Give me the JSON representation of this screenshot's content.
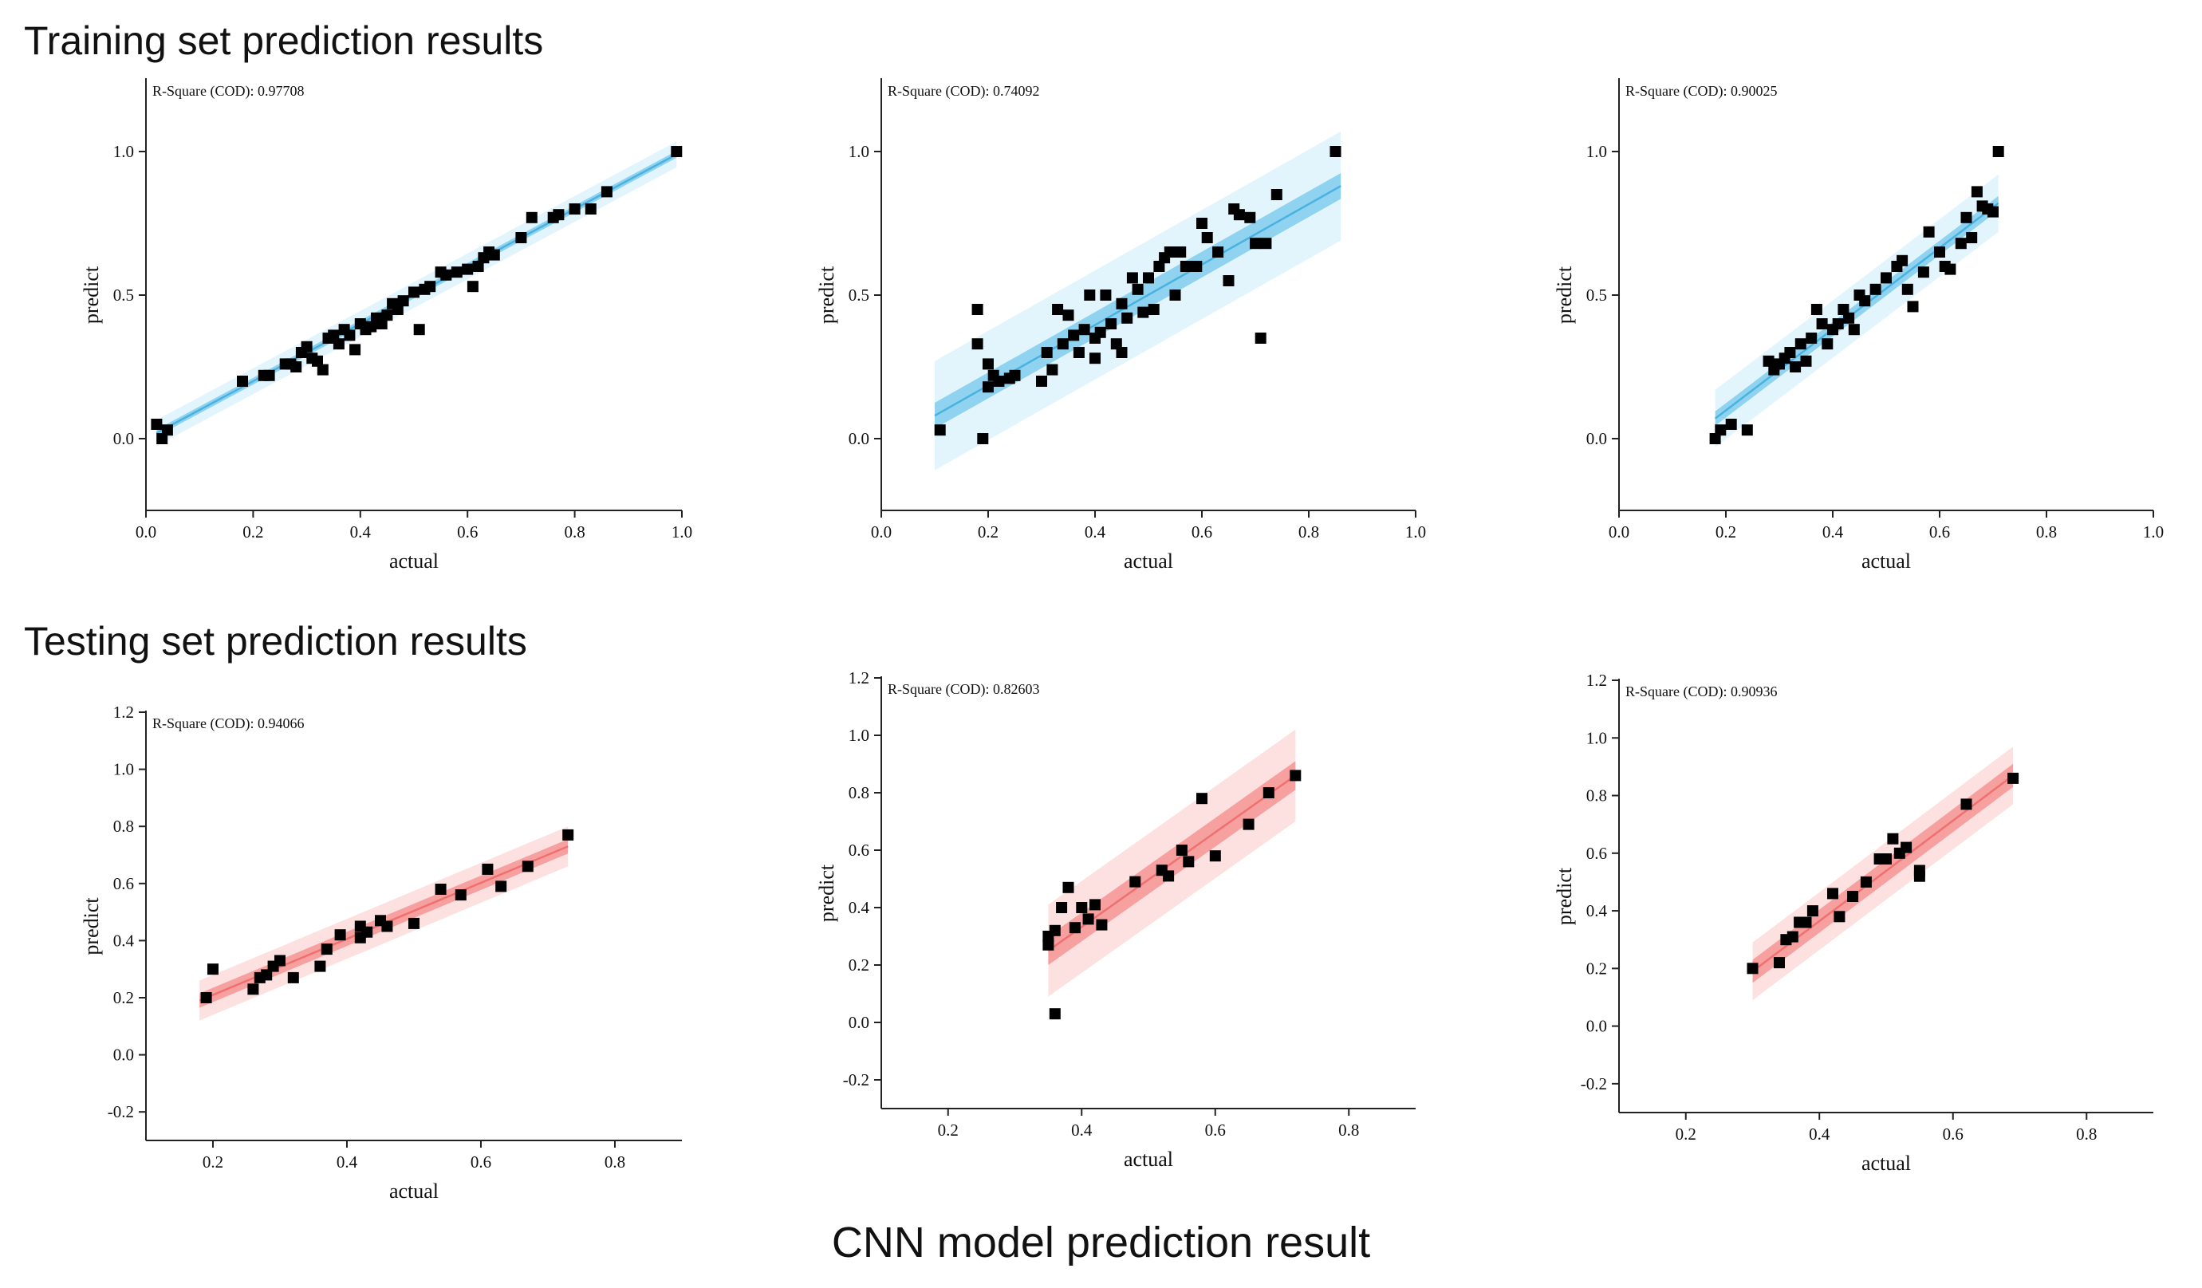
{
  "section_titles": {
    "training": "Training set prediction results",
    "testing": "Testing set prediction results"
  },
  "caption": "CNN model  prediction result",
  "colors": {
    "train_line": "#4ab2df",
    "train_conf": "#8fd3f0",
    "train_pred": "#e2f5fd",
    "test_line": "#f07070",
    "test_conf": "#f6a0a0",
    "test_pred": "#fde1e1",
    "marker": "#000000",
    "axis": "#222222"
  },
  "chart_data": [
    {
      "type": "scatter",
      "set": "training",
      "model": 1,
      "r2_text": "R-Square (COD): 0.97708",
      "xlabel": "actual",
      "ylabel": "predict",
      "xlim": [
        0,
        1
      ],
      "ylim": [
        -0.25,
        1.25
      ],
      "xticks": [
        0,
        0.2,
        0.4,
        0.6,
        0.8,
        1.0
      ],
      "xtick_labels": [
        "0.0",
        "0.2",
        "0.4",
        "0.6",
        "0.8",
        "1.0"
      ],
      "yticks": [
        0,
        0.5,
        1.0
      ],
      "ytick_labels": [
        "0.0",
        "0.5",
        "1.0"
      ],
      "fit": {
        "x0": 0.02,
        "y0": 0.02,
        "x1": 0.99,
        "y1": 0.99,
        "conf": 0.012,
        "pred": 0.045
      },
      "points": [
        [
          0.02,
          0.05
        ],
        [
          0.03,
          0.0
        ],
        [
          0.04,
          0.03
        ],
        [
          0.18,
          0.2
        ],
        [
          0.22,
          0.22
        ],
        [
          0.23,
          0.22
        ],
        [
          0.26,
          0.26
        ],
        [
          0.27,
          0.26
        ],
        [
          0.28,
          0.25
        ],
        [
          0.29,
          0.3
        ],
        [
          0.3,
          0.32
        ],
        [
          0.31,
          0.28
        ],
        [
          0.32,
          0.27
        ],
        [
          0.33,
          0.24
        ],
        [
          0.34,
          0.35
        ],
        [
          0.35,
          0.36
        ],
        [
          0.36,
          0.33
        ],
        [
          0.37,
          0.38
        ],
        [
          0.38,
          0.36
        ],
        [
          0.39,
          0.31
        ],
        [
          0.4,
          0.4
        ],
        [
          0.41,
          0.38
        ],
        [
          0.42,
          0.39
        ],
        [
          0.43,
          0.42
        ],
        [
          0.44,
          0.4
        ],
        [
          0.45,
          0.43
        ],
        [
          0.46,
          0.47
        ],
        [
          0.47,
          0.45
        ],
        [
          0.48,
          0.48
        ],
        [
          0.5,
          0.51
        ],
        [
          0.51,
          0.38
        ],
        [
          0.52,
          0.52
        ],
        [
          0.53,
          0.53
        ],
        [
          0.55,
          0.58
        ],
        [
          0.56,
          0.57
        ],
        [
          0.58,
          0.58
        ],
        [
          0.6,
          0.59
        ],
        [
          0.61,
          0.53
        ],
        [
          0.62,
          0.6
        ],
        [
          0.63,
          0.63
        ],
        [
          0.64,
          0.65
        ],
        [
          0.65,
          0.64
        ],
        [
          0.7,
          0.7
        ],
        [
          0.72,
          0.77
        ],
        [
          0.76,
          0.77
        ],
        [
          0.77,
          0.78
        ],
        [
          0.8,
          0.8
        ],
        [
          0.83,
          0.8
        ],
        [
          0.86,
          0.86
        ],
        [
          0.99,
          1.0
        ]
      ]
    },
    {
      "type": "scatter",
      "set": "training",
      "model": 2,
      "r2_text": "R-Square (COD): 0.74092",
      "xlabel": "actual",
      "ylabel": "predict",
      "xlim": [
        0,
        1
      ],
      "ylim": [
        -0.25,
        1.25
      ],
      "xticks": [
        0,
        0.2,
        0.4,
        0.6,
        0.8,
        1.0
      ],
      "xtick_labels": [
        "0.0",
        "0.2",
        "0.4",
        "0.6",
        "0.8",
        "1.0"
      ],
      "yticks": [
        0,
        0.5,
        1.0
      ],
      "ytick_labels": [
        "0.0",
        "0.5",
        "1.0"
      ],
      "fit": {
        "x0": 0.1,
        "y0": 0.08,
        "x1": 0.86,
        "y1": 0.88,
        "conf": 0.045,
        "pred": 0.19
      },
      "points": [
        [
          0.11,
          0.03
        ],
        [
          0.18,
          0.45
        ],
        [
          0.18,
          0.33
        ],
        [
          0.19,
          0.0
        ],
        [
          0.2,
          0.26
        ],
        [
          0.2,
          0.18
        ],
        [
          0.21,
          0.22
        ],
        [
          0.22,
          0.2
        ],
        [
          0.24,
          0.21
        ],
        [
          0.25,
          0.22
        ],
        [
          0.3,
          0.2
        ],
        [
          0.31,
          0.3
        ],
        [
          0.32,
          0.24
        ],
        [
          0.33,
          0.45
        ],
        [
          0.34,
          0.33
        ],
        [
          0.35,
          0.43
        ],
        [
          0.36,
          0.36
        ],
        [
          0.37,
          0.3
        ],
        [
          0.38,
          0.38
        ],
        [
          0.39,
          0.5
        ],
        [
          0.4,
          0.35
        ],
        [
          0.4,
          0.28
        ],
        [
          0.41,
          0.37
        ],
        [
          0.42,
          0.5
        ],
        [
          0.43,
          0.4
        ],
        [
          0.44,
          0.33
        ],
        [
          0.45,
          0.47
        ],
        [
          0.45,
          0.3
        ],
        [
          0.46,
          0.42
        ],
        [
          0.47,
          0.56
        ],
        [
          0.48,
          0.52
        ],
        [
          0.49,
          0.44
        ],
        [
          0.5,
          0.56
        ],
        [
          0.51,
          0.45
        ],
        [
          0.52,
          0.6
        ],
        [
          0.53,
          0.63
        ],
        [
          0.54,
          0.65
        ],
        [
          0.55,
          0.5
        ],
        [
          0.56,
          0.65
        ],
        [
          0.57,
          0.6
        ],
        [
          0.59,
          0.6
        ],
        [
          0.6,
          0.75
        ],
        [
          0.61,
          0.7
        ],
        [
          0.63,
          0.65
        ],
        [
          0.65,
          0.55
        ],
        [
          0.66,
          0.8
        ],
        [
          0.67,
          0.78
        ],
        [
          0.69,
          0.77
        ],
        [
          0.7,
          0.68
        ],
        [
          0.71,
          0.35
        ],
        [
          0.72,
          0.68
        ],
        [
          0.74,
          0.85
        ],
        [
          0.85,
          1.0
        ]
      ]
    },
    {
      "type": "scatter",
      "set": "training",
      "model": 3,
      "r2_text": "R-Square (COD): 0.90025",
      "xlabel": "actual",
      "ylabel": "predict",
      "xlim": [
        0,
        1
      ],
      "ylim": [
        -0.25,
        1.25
      ],
      "xticks": [
        0,
        0.2,
        0.4,
        0.6,
        0.8,
        1.0
      ],
      "xtick_labels": [
        "0.0",
        "0.2",
        "0.4",
        "0.6",
        "0.8",
        "1.0"
      ],
      "yticks": [
        0,
        0.5,
        1.0
      ],
      "ytick_labels": [
        "0.0",
        "0.5",
        "1.0"
      ],
      "fit": {
        "x0": 0.18,
        "y0": 0.07,
        "x1": 0.71,
        "y1": 0.82,
        "conf": 0.025,
        "pred": 0.1
      },
      "points": [
        [
          0.18,
          0.0
        ],
        [
          0.19,
          0.03
        ],
        [
          0.21,
          0.05
        ],
        [
          0.24,
          0.03
        ],
        [
          0.28,
          0.27
        ],
        [
          0.29,
          0.24
        ],
        [
          0.3,
          0.26
        ],
        [
          0.31,
          0.28
        ],
        [
          0.32,
          0.3
        ],
        [
          0.33,
          0.25
        ],
        [
          0.34,
          0.33
        ],
        [
          0.35,
          0.27
        ],
        [
          0.36,
          0.35
        ],
        [
          0.37,
          0.45
        ],
        [
          0.38,
          0.4
        ],
        [
          0.39,
          0.33
        ],
        [
          0.4,
          0.38
        ],
        [
          0.41,
          0.4
        ],
        [
          0.42,
          0.45
        ],
        [
          0.43,
          0.42
        ],
        [
          0.44,
          0.38
        ],
        [
          0.45,
          0.5
        ],
        [
          0.46,
          0.48
        ],
        [
          0.48,
          0.52
        ],
        [
          0.5,
          0.56
        ],
        [
          0.52,
          0.6
        ],
        [
          0.53,
          0.62
        ],
        [
          0.54,
          0.52
        ],
        [
          0.55,
          0.46
        ],
        [
          0.57,
          0.58
        ],
        [
          0.58,
          0.72
        ],
        [
          0.6,
          0.65
        ],
        [
          0.61,
          0.6
        ],
        [
          0.62,
          0.59
        ],
        [
          0.64,
          0.68
        ],
        [
          0.65,
          0.77
        ],
        [
          0.66,
          0.7
        ],
        [
          0.67,
          0.86
        ],
        [
          0.68,
          0.81
        ],
        [
          0.69,
          0.8
        ],
        [
          0.7,
          0.79
        ],
        [
          0.71,
          1.0
        ]
      ]
    },
    {
      "type": "scatter",
      "set": "testing",
      "model": 1,
      "r2_text": "R-Square (COD): 0.94066",
      "xlabel": "actual",
      "ylabel": "predict",
      "xlim": [
        0.1,
        0.9
      ],
      "ylim": [
        -0.3,
        1.2
      ],
      "xticks": [
        0.2,
        0.4,
        0.6,
        0.8
      ],
      "xtick_labels": [
        "0.2",
        "0.4",
        "0.6",
        "0.8"
      ],
      "yticks": [
        -0.2,
        0,
        0.2,
        0.4,
        0.6,
        0.8,
        1.0,
        1.2
      ],
      "ytick_labels": [
        "-0.2",
        "0.0",
        "0.2",
        "0.4",
        "0.6",
        "0.8",
        "1.0",
        "1.2"
      ],
      "fit": {
        "x0": 0.18,
        "y0": 0.19,
        "x1": 0.73,
        "y1": 0.73,
        "conf": 0.025,
        "pred": 0.07
      },
      "points": [
        [
          0.19,
          0.2
        ],
        [
          0.2,
          0.3
        ],
        [
          0.26,
          0.23
        ],
        [
          0.27,
          0.27
        ],
        [
          0.28,
          0.28
        ],
        [
          0.29,
          0.31
        ],
        [
          0.3,
          0.33
        ],
        [
          0.32,
          0.27
        ],
        [
          0.36,
          0.31
        ],
        [
          0.37,
          0.37
        ],
        [
          0.39,
          0.42
        ],
        [
          0.42,
          0.41
        ],
        [
          0.42,
          0.45
        ],
        [
          0.43,
          0.43
        ],
        [
          0.45,
          0.47
        ],
        [
          0.46,
          0.45
        ],
        [
          0.5,
          0.46
        ],
        [
          0.54,
          0.58
        ],
        [
          0.57,
          0.56
        ],
        [
          0.61,
          0.65
        ],
        [
          0.63,
          0.59
        ],
        [
          0.67,
          0.66
        ],
        [
          0.73,
          0.77
        ]
      ]
    },
    {
      "type": "scatter",
      "set": "testing",
      "model": 2,
      "r2_text": "R-Square (COD): 0.82603",
      "xlabel": "actual",
      "ylabel": "predict",
      "xlim": [
        0.1,
        0.9
      ],
      "ylim": [
        -0.3,
        1.2
      ],
      "xticks": [
        0.2,
        0.4,
        0.6,
        0.8
      ],
      "xtick_labels": [
        "0.2",
        "0.4",
        "0.6",
        "0.8"
      ],
      "yticks": [
        -0.2,
        0,
        0.2,
        0.4,
        0.6,
        0.8,
        1.0,
        1.2
      ],
      "ytick_labels": [
        "-0.2",
        "0.0",
        "0.2",
        "0.4",
        "0.6",
        "0.8",
        "1.0",
        "1.2"
      ],
      "fit": {
        "x0": 0.35,
        "y0": 0.25,
        "x1": 0.72,
        "y1": 0.86,
        "conf": 0.05,
        "pred": 0.16
      },
      "points": [
        [
          0.35,
          0.3
        ],
        [
          0.35,
          0.27
        ],
        [
          0.36,
          0.32
        ],
        [
          0.36,
          0.03
        ],
        [
          0.37,
          0.4
        ],
        [
          0.38,
          0.47
        ],
        [
          0.39,
          0.33
        ],
        [
          0.4,
          0.4
        ],
        [
          0.41,
          0.36
        ],
        [
          0.42,
          0.41
        ],
        [
          0.43,
          0.34
        ],
        [
          0.48,
          0.49
        ],
        [
          0.52,
          0.53
        ],
        [
          0.53,
          0.51
        ],
        [
          0.55,
          0.6
        ],
        [
          0.56,
          0.56
        ],
        [
          0.58,
          0.78
        ],
        [
          0.6,
          0.58
        ],
        [
          0.65,
          0.69
        ],
        [
          0.68,
          0.8
        ],
        [
          0.72,
          0.86
        ]
      ]
    },
    {
      "type": "scatter",
      "set": "testing",
      "model": 3,
      "r2_text": "R-Square (COD): 0.90936",
      "xlabel": "actual",
      "ylabel": "predict",
      "xlim": [
        0.1,
        0.9
      ],
      "ylim": [
        -0.3,
        1.2
      ],
      "xticks": [
        0.2,
        0.4,
        0.6,
        0.8
      ],
      "xtick_labels": [
        "0.2",
        "0.4",
        "0.6",
        "0.8"
      ],
      "yticks": [
        -0.2,
        0,
        0.2,
        0.4,
        0.6,
        0.8,
        1.0,
        1.2
      ],
      "ytick_labels": [
        "-0.2",
        "0.0",
        "0.2",
        "0.4",
        "0.6",
        "0.8",
        "1.0",
        "1.2"
      ],
      "fit": {
        "x0": 0.3,
        "y0": 0.19,
        "x1": 0.69,
        "y1": 0.87,
        "conf": 0.04,
        "pred": 0.1
      },
      "points": [
        [
          0.3,
          0.2
        ],
        [
          0.34,
          0.22
        ],
        [
          0.35,
          0.3
        ],
        [
          0.36,
          0.31
        ],
        [
          0.37,
          0.36
        ],
        [
          0.38,
          0.36
        ],
        [
          0.39,
          0.4
        ],
        [
          0.42,
          0.46
        ],
        [
          0.43,
          0.38
        ],
        [
          0.45,
          0.45
        ],
        [
          0.47,
          0.5
        ],
        [
          0.49,
          0.58
        ],
        [
          0.5,
          0.58
        ],
        [
          0.51,
          0.65
        ],
        [
          0.52,
          0.6
        ],
        [
          0.53,
          0.62
        ],
        [
          0.55,
          0.52
        ],
        [
          0.55,
          0.54
        ],
        [
          0.62,
          0.77
        ],
        [
          0.69,
          0.86
        ]
      ]
    }
  ]
}
